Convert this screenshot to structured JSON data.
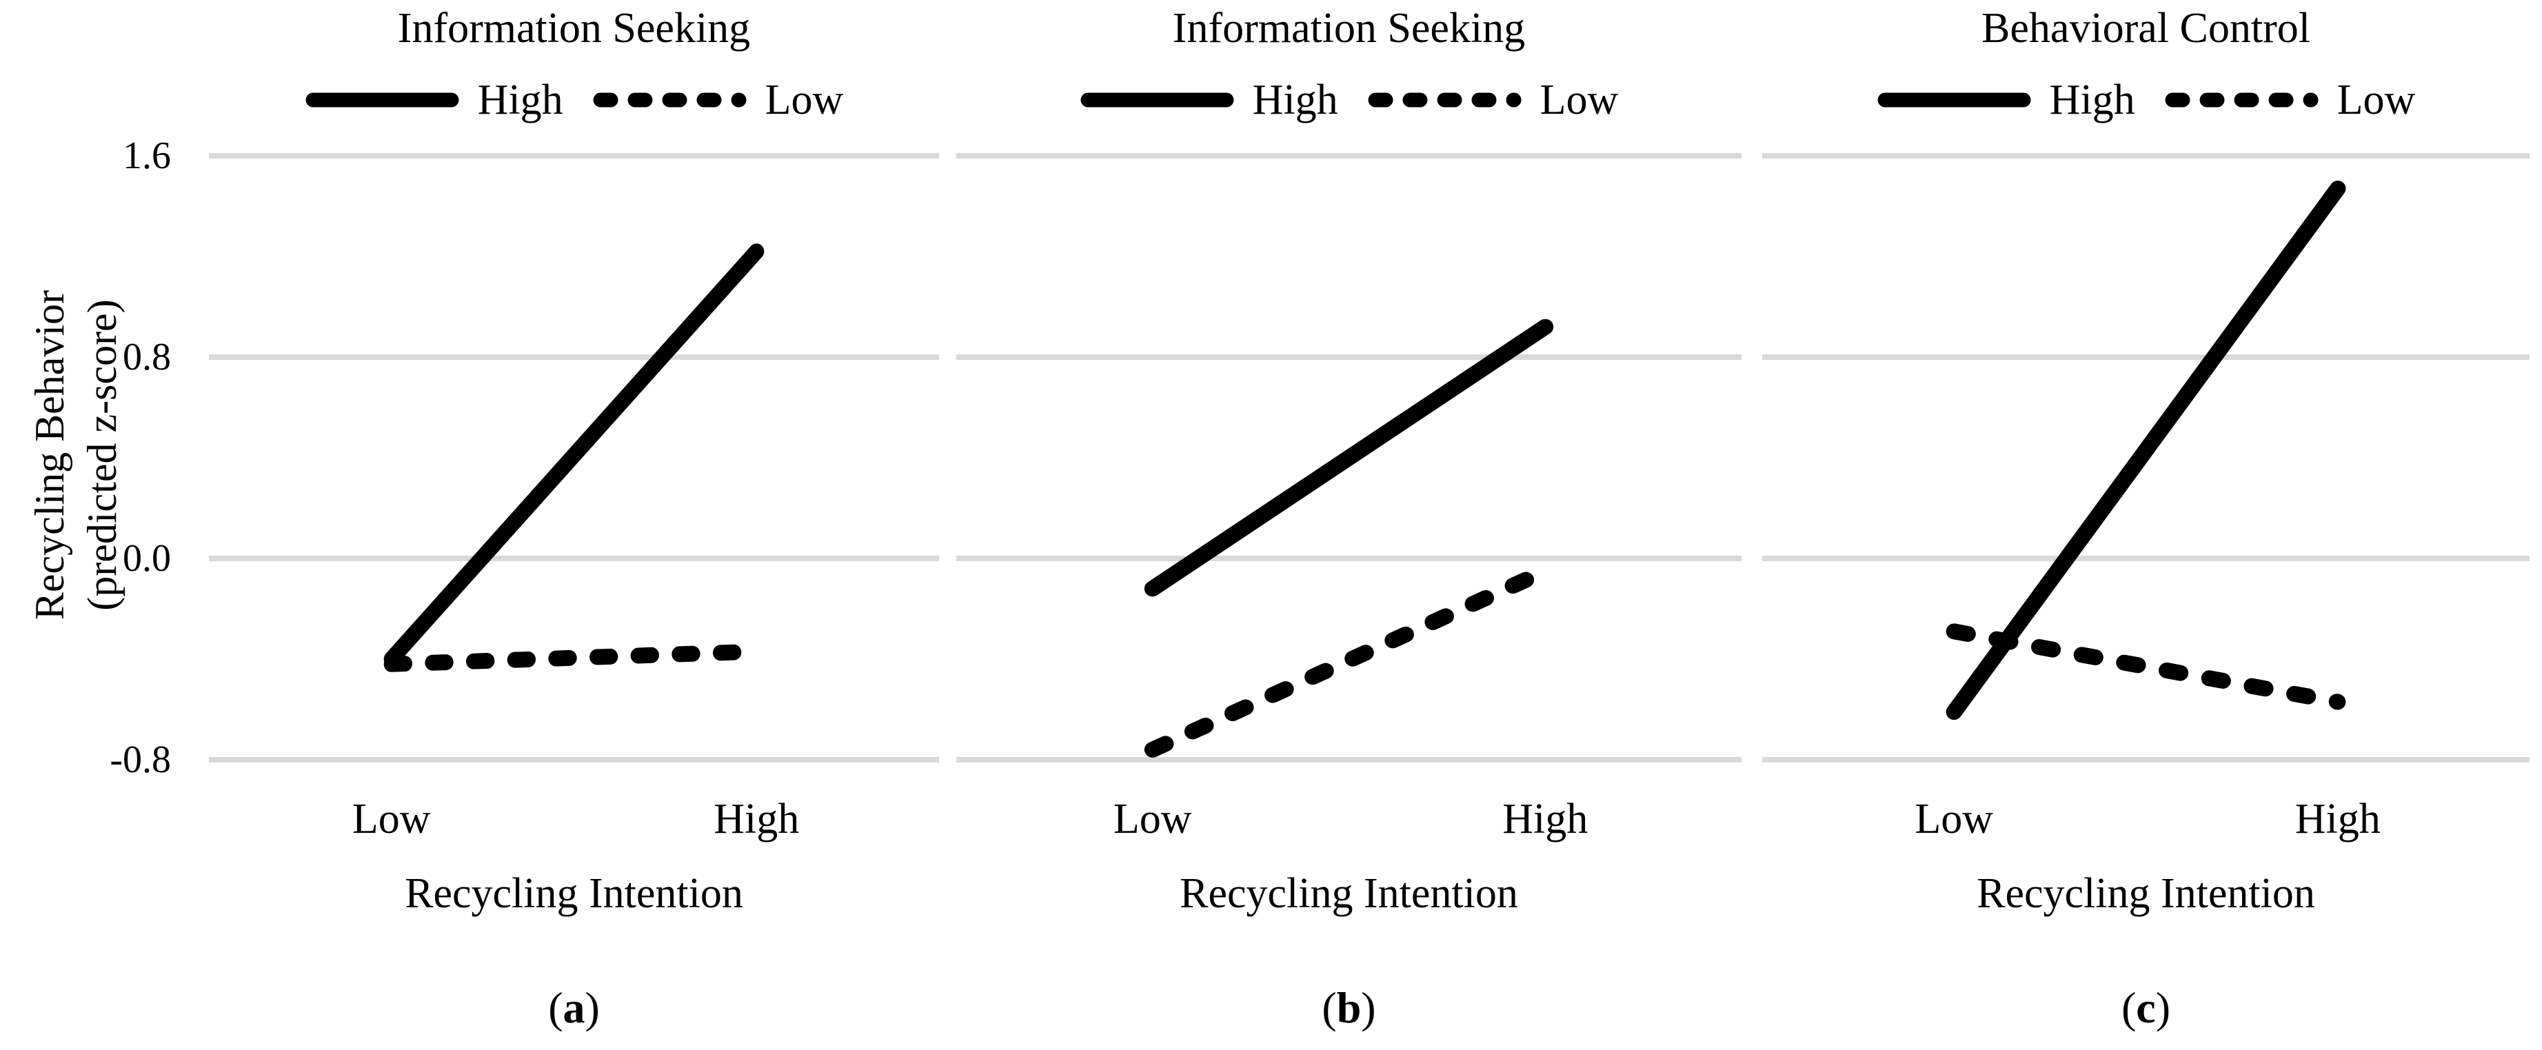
{
  "figure": {
    "y_axis": {
      "label_line1": "Recycling Behavior",
      "label_line2": "(predicted z-score)",
      "ticks": [
        "1.6",
        "0.8",
        "0.0",
        "-0.8"
      ]
    },
    "panels": [
      {
        "title": "Information Seeking",
        "legend": {
          "high": "High",
          "low": "Low"
        },
        "x_ticks": {
          "low": "Low",
          "high": "High"
        },
        "x_label": "Recycling Intention",
        "caption": {
          "open": "(",
          "letter": "a",
          "close": ")"
        }
      },
      {
        "title": "Information Seeking",
        "legend": {
          "high": "High",
          "low": "Low"
        },
        "x_ticks": {
          "low": "Low",
          "high": "High"
        },
        "x_label": "Recycling Intention",
        "caption": {
          "open": "(",
          "letter": "b",
          "close": ")"
        }
      },
      {
        "title": "Behavioral Control",
        "legend": {
          "high": "High",
          "low": "Low"
        },
        "x_ticks": {
          "low": "Low",
          "high": "High"
        },
        "x_label": "Recycling Intention",
        "caption": {
          "open": "(",
          "letter": "c",
          "close": ")"
        }
      }
    ],
    "colors": {
      "line": "#000000",
      "gridline": "#d9d9d9",
      "text": "#000000",
      "background": "#ffffff"
    }
  },
  "chart_data": [
    {
      "type": "line",
      "panel": "a",
      "title": "Information Seeking",
      "x": [
        "Low",
        "High"
      ],
      "xlabel": "Recycling Intention",
      "ylabel": "Recycling Behavior (predicted z-score)",
      "yticks": [
        1.6,
        0.8,
        0.0,
        -0.8
      ],
      "ylim": [
        -1.0,
        1.73
      ],
      "grid": "horizontal",
      "legend_position": "top",
      "series": [
        {
          "name": "High",
          "line_style": "solid",
          "values": [
            -0.4,
            1.22
          ]
        },
        {
          "name": "Low",
          "line_style": "dashed",
          "values": [
            -0.42,
            -0.37
          ]
        }
      ]
    },
    {
      "type": "line",
      "panel": "b",
      "title": "Information Seeking",
      "x": [
        "Low",
        "High"
      ],
      "xlabel": "Recycling Intention",
      "ylabel": "Recycling Behavior (predicted z-score)",
      "yticks": [
        1.6,
        0.8,
        0.0,
        -0.8
      ],
      "ylim": [
        -1.0,
        1.73
      ],
      "grid": "horizontal",
      "legend_position": "top",
      "series": [
        {
          "name": "High",
          "line_style": "solid",
          "values": [
            -0.12,
            0.92
          ]
        },
        {
          "name": "Low",
          "line_style": "dashed",
          "values": [
            -0.76,
            -0.05
          ]
        }
      ]
    },
    {
      "type": "line",
      "panel": "c",
      "title": "Behavioral Control",
      "x": [
        "Low",
        "High"
      ],
      "xlabel": "Recycling Intention",
      "ylabel": "Recycling Behavior (predicted z-score)",
      "yticks": [
        1.6,
        0.8,
        0.0,
        -0.8
      ],
      "ylim": [
        -1.0,
        1.73
      ],
      "grid": "horizontal",
      "legend_position": "top",
      "series": [
        {
          "name": "High",
          "line_style": "solid",
          "values": [
            -0.61,
            1.47
          ]
        },
        {
          "name": "Low",
          "line_style": "dashed",
          "values": [
            -0.29,
            -0.57
          ]
        }
      ]
    }
  ]
}
